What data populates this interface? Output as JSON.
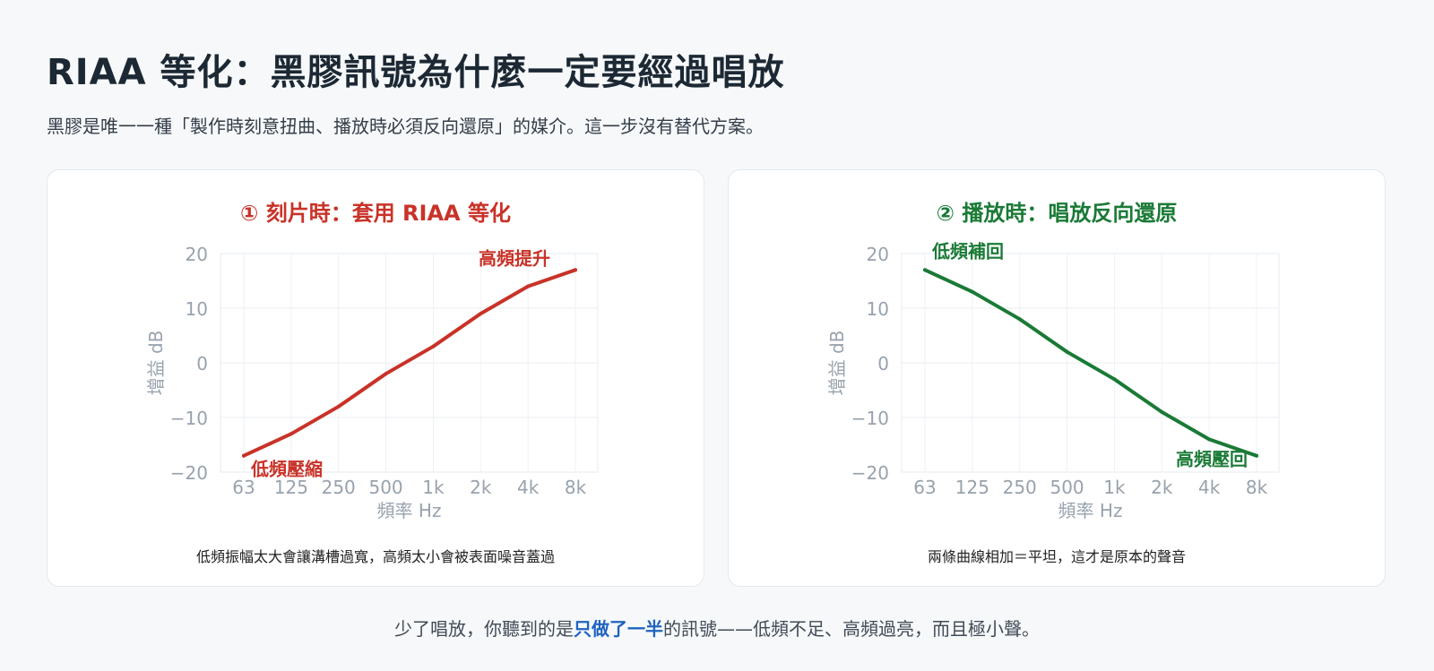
{
  "page": {
    "title": "RIAA 等化：黑膠訊號為什麼一定要經過唱放",
    "subtitle": "黑膠是唯一一種「製作時刻意扭曲、播放時必須反向還原」的媒介。這一步沒有替代方案。",
    "footer": {
      "before": "少了唱放，你聽到的是",
      "highlight": "只做了一半",
      "after": "的訊號——低頻不足、高頻過亮，而且極小聲。"
    },
    "colors": {
      "recording": "#c93228",
      "playback": "#1a7a36",
      "highlight": "#1e63c0"
    }
  },
  "chart_data": [
    {
      "type": "line",
      "title": "① 刻片時：套用 RIAA 等化",
      "caption": "低頻振幅太大會讓溝槽過寬，高頻太小會被表面噪音蓋過",
      "x_categories": [
        "63",
        "125",
        "250",
        "500",
        "1k",
        "2k",
        "4k",
        "8k"
      ],
      "xlabel": "頻率 Hz",
      "ylabel": "增益 dB",
      "ylim": [
        -20,
        20
      ],
      "yticks": [
        20,
        10,
        0,
        -10,
        -20
      ],
      "ytick_labels": [
        "20",
        "10",
        "0",
        "−10",
        "−20"
      ],
      "grid": true,
      "color": "#c93228",
      "series": [
        {
          "values": [
            -17,
            -13,
            -8,
            -2,
            3,
            9,
            14,
            17
          ]
        }
      ],
      "annotations": [
        {
          "text": "低頻壓縮",
          "at": "start"
        },
        {
          "text": "高頻提升",
          "at": "end"
        }
      ]
    },
    {
      "type": "line",
      "title": "② 播放時：唱放反向還原",
      "caption": "兩條曲線相加＝平坦，這才是原本的聲音",
      "x_categories": [
        "63",
        "125",
        "250",
        "500",
        "1k",
        "2k",
        "4k",
        "8k"
      ],
      "xlabel": "頻率 Hz",
      "ylabel": "增益 dB",
      "ylim": [
        -20,
        20
      ],
      "yticks": [
        20,
        10,
        0,
        -10,
        -20
      ],
      "ytick_labels": [
        "20",
        "10",
        "0",
        "−10",
        "−20"
      ],
      "grid": true,
      "color": "#1a7a36",
      "series": [
        {
          "values": [
            17,
            13,
            8,
            2,
            -3,
            -9,
            -14,
            -17
          ]
        }
      ],
      "annotations": [
        {
          "text": "低頻補回",
          "at": "start"
        },
        {
          "text": "高頻壓回",
          "at": "end"
        }
      ]
    }
  ]
}
